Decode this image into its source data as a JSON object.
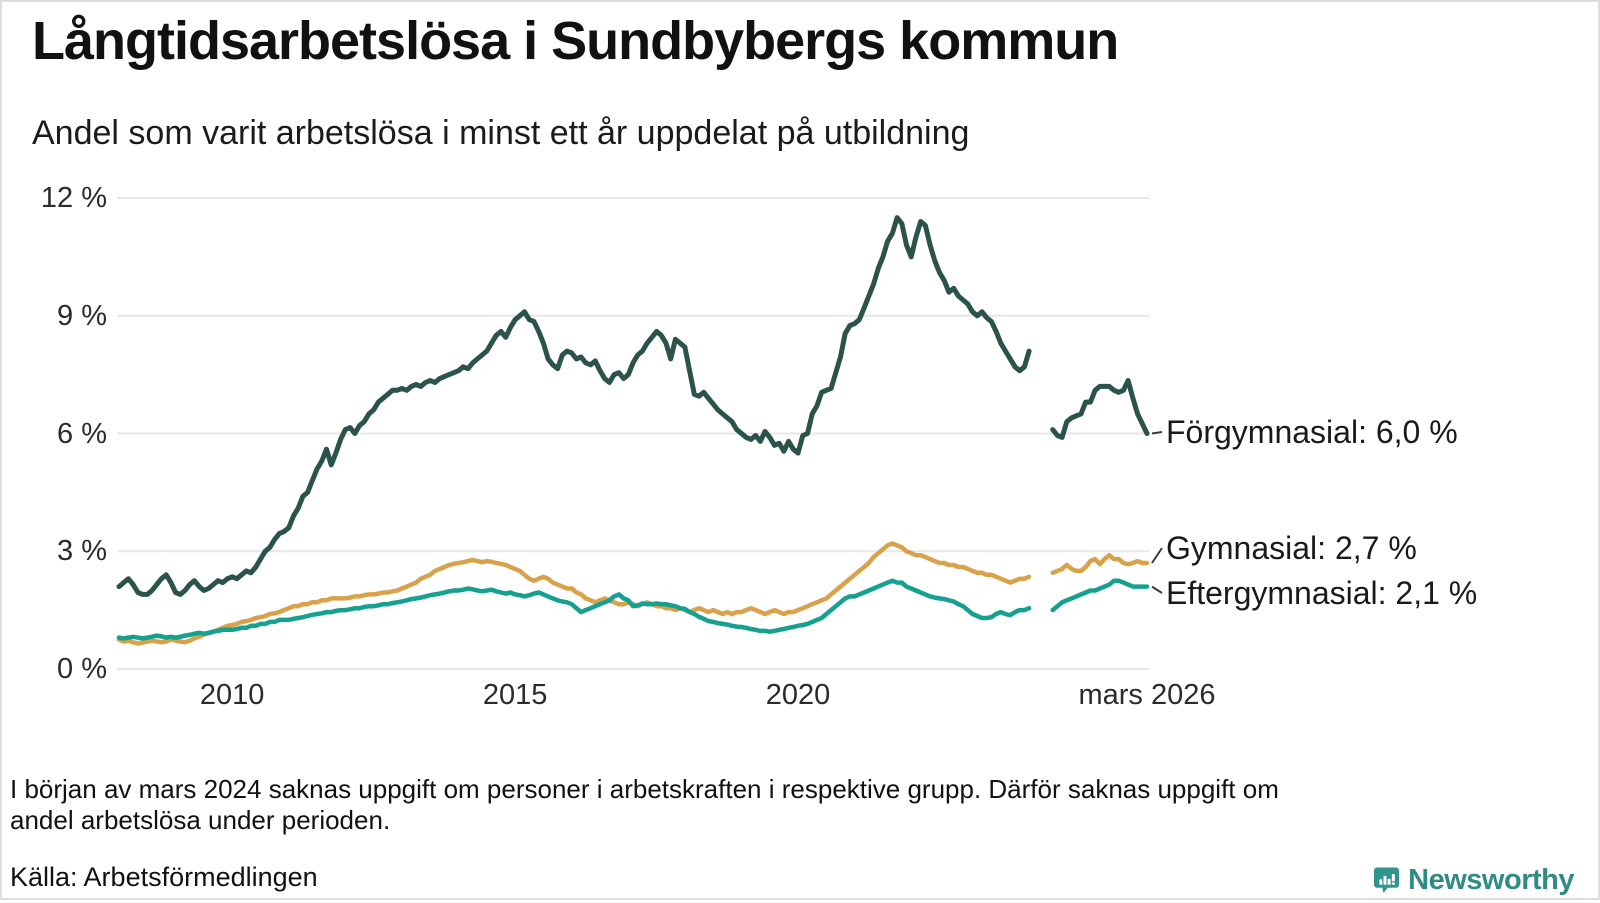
{
  "header": {
    "title": "Långtidsarbetslösa i Sundbybergs kommun",
    "subtitle": "Andel som varit arbetslösa i minst ett år uppdelat på utbildning"
  },
  "chart_data": {
    "type": "line",
    "unit": "%",
    "frequency": "monthly",
    "x_start": "2008-01",
    "x_end": "2026-03",
    "x_axis_t_range": [
      2008.0,
      2026.1667
    ],
    "ylim": [
      0,
      12
    ],
    "grid": "horizontal",
    "gridline_color": "#e7e7ea",
    "y_ticks": [
      {
        "label": "12 %",
        "value": 12
      },
      {
        "label": "9 %",
        "value": 9
      },
      {
        "label": "6 %",
        "value": 6
      },
      {
        "label": "3 %",
        "value": 3
      },
      {
        "label": "0 %",
        "value": 0
      }
    ],
    "x_ticks": [
      {
        "label": "2010",
        "t": 2010.0
      },
      {
        "label": "2015",
        "t": 2015.0
      },
      {
        "label": "2020",
        "t": 2020.0
      },
      {
        "label": "mars 2026",
        "t": 2026.1667
      }
    ],
    "series": [
      {
        "id": "gymnasial",
        "name": "Gymnasial",
        "color": "#d8a24b",
        "end_label": "Gymnasial: 2,7 %",
        "end_value": "2,7 %",
        "values": [
          0.75,
          0.7,
          0.72,
          0.68,
          0.65,
          0.67,
          0.7,
          0.72,
          0.7,
          0.68,
          0.7,
          0.75,
          0.72,
          0.7,
          0.68,
          0.72,
          0.78,
          0.82,
          0.88,
          0.92,
          0.95,
          1.0,
          1.05,
          1.1,
          1.12,
          1.15,
          1.2,
          1.22,
          1.25,
          1.3,
          1.32,
          1.35,
          1.4,
          1.42,
          1.45,
          1.5,
          1.55,
          1.6,
          1.6,
          1.65,
          1.65,
          1.7,
          1.7,
          1.75,
          1.75,
          1.8,
          1.8,
          1.8,
          1.8,
          1.82,
          1.85,
          1.85,
          1.88,
          1.9,
          1.9,
          1.92,
          1.95,
          1.95,
          1.98,
          2.0,
          2.05,
          2.1,
          2.15,
          2.2,
          2.3,
          2.35,
          2.4,
          2.5,
          2.55,
          2.6,
          2.65,
          2.68,
          2.7,
          2.72,
          2.75,
          2.78,
          2.75,
          2.72,
          2.75,
          2.73,
          2.7,
          2.68,
          2.65,
          2.6,
          2.55,
          2.5,
          2.4,
          2.3,
          2.25,
          2.3,
          2.35,
          2.3,
          2.2,
          2.15,
          2.1,
          2.05,
          2.05,
          1.95,
          1.9,
          1.8,
          1.75,
          1.7,
          1.75,
          1.8,
          1.75,
          1.7,
          1.65,
          1.65,
          1.7,
          1.65,
          1.6,
          1.65,
          1.7,
          1.65,
          1.6,
          1.6,
          1.55,
          1.55,
          1.5,
          1.55,
          1.5,
          1.45,
          1.5,
          1.55,
          1.5,
          1.45,
          1.5,
          1.45,
          1.4,
          1.45,
          1.4,
          1.45,
          1.45,
          1.5,
          1.55,
          1.5,
          1.45,
          1.4,
          1.45,
          1.5,
          1.45,
          1.4,
          1.45,
          1.45,
          1.5,
          1.55,
          1.6,
          1.65,
          1.7,
          1.75,
          1.8,
          1.9,
          2.0,
          2.1,
          2.2,
          2.3,
          2.4,
          2.5,
          2.6,
          2.7,
          2.85,
          2.95,
          3.05,
          3.15,
          3.2,
          3.15,
          3.1,
          3.0,
          2.95,
          2.9,
          2.9,
          2.85,
          2.8,
          2.75,
          2.7,
          2.7,
          2.65,
          2.65,
          2.6,
          2.6,
          2.55,
          2.5,
          2.45,
          2.45,
          2.4,
          2.4,
          2.35,
          2.3,
          2.25,
          2.2,
          2.25,
          2.3,
          2.3,
          2.35,
          null,
          null,
          null,
          null,
          2.45,
          2.5,
          2.55,
          2.65,
          2.55,
          2.5,
          2.5,
          2.6,
          2.75,
          2.8,
          2.67,
          2.8,
          2.9,
          2.8,
          2.8,
          2.7,
          2.67,
          2.7,
          2.75,
          2.7,
          2.7
        ]
      },
      {
        "id": "eftergymnasial",
        "name": "Eftergymnasial",
        "color": "#15a08f",
        "end_label": "Eftergymnasial: 2,1 %",
        "end_value": "2,1 %",
        "values": [
          0.8,
          0.78,
          0.8,
          0.82,
          0.8,
          0.78,
          0.8,
          0.82,
          0.85,
          0.83,
          0.8,
          0.82,
          0.8,
          0.82,
          0.85,
          0.87,
          0.9,
          0.92,
          0.9,
          0.92,
          0.95,
          0.97,
          1.0,
          1.0,
          1.0,
          1.02,
          1.05,
          1.05,
          1.1,
          1.1,
          1.15,
          1.15,
          1.2,
          1.2,
          1.25,
          1.25,
          1.25,
          1.28,
          1.3,
          1.32,
          1.35,
          1.38,
          1.4,
          1.42,
          1.45,
          1.45,
          1.48,
          1.5,
          1.5,
          1.52,
          1.55,
          1.55,
          1.58,
          1.6,
          1.6,
          1.62,
          1.65,
          1.65,
          1.68,
          1.7,
          1.72,
          1.75,
          1.78,
          1.8,
          1.82,
          1.85,
          1.88,
          1.9,
          1.92,
          1.95,
          1.98,
          2.0,
          2.0,
          2.02,
          2.05,
          2.03,
          2.0,
          1.98,
          2.0,
          2.02,
          1.98,
          1.95,
          1.92,
          1.95,
          1.9,
          1.88,
          1.85,
          1.88,
          1.92,
          1.95,
          1.9,
          1.85,
          1.8,
          1.75,
          1.72,
          1.7,
          1.65,
          1.55,
          1.45,
          1.5,
          1.55,
          1.6,
          1.65,
          1.7,
          1.75,
          1.85,
          1.9,
          1.8,
          1.75,
          1.6,
          1.62,
          1.67,
          1.65,
          1.65,
          1.67,
          1.65,
          1.65,
          1.62,
          1.6,
          1.55,
          1.53,
          1.45,
          1.4,
          1.33,
          1.28,
          1.22,
          1.2,
          1.17,
          1.15,
          1.13,
          1.1,
          1.08,
          1.07,
          1.05,
          1.02,
          1.0,
          0.97,
          0.97,
          0.95,
          0.97,
          1.0,
          1.02,
          1.05,
          1.07,
          1.1,
          1.12,
          1.15,
          1.2,
          1.25,
          1.3,
          1.4,
          1.5,
          1.6,
          1.7,
          1.8,
          1.85,
          1.85,
          1.9,
          1.95,
          2.0,
          2.05,
          2.1,
          2.15,
          2.2,
          2.25,
          2.2,
          2.2,
          2.1,
          2.05,
          2.0,
          1.95,
          1.9,
          1.85,
          1.82,
          1.8,
          1.78,
          1.75,
          1.72,
          1.65,
          1.6,
          1.5,
          1.4,
          1.35,
          1.3,
          1.3,
          1.32,
          1.4,
          1.45,
          1.4,
          1.37,
          1.45,
          1.5,
          1.5,
          1.55,
          null,
          null,
          null,
          null,
          1.5,
          1.6,
          1.7,
          1.75,
          1.8,
          1.85,
          1.9,
          1.95,
          2.0,
          2.0,
          2.05,
          2.1,
          2.15,
          2.25,
          2.25,
          2.2,
          2.15,
          2.1,
          2.1,
          2.1,
          2.1
        ]
      },
      {
        "id": "forgymnasial",
        "name": "Förgymnasial",
        "color": "#2b524b",
        "end_label": "Förgymnasial: 6,0 %",
        "end_value": "6,0 %",
        "values": [
          2.1,
          2.2,
          2.3,
          2.15,
          1.95,
          1.9,
          1.9,
          2.0,
          2.15,
          2.3,
          2.4,
          2.2,
          1.95,
          1.9,
          2.0,
          2.15,
          2.25,
          2.1,
          2.0,
          2.05,
          2.15,
          2.25,
          2.2,
          2.3,
          2.35,
          2.3,
          2.4,
          2.5,
          2.45,
          2.6,
          2.8,
          3.0,
          3.1,
          3.3,
          3.45,
          3.5,
          3.6,
          3.9,
          4.1,
          4.4,
          4.5,
          4.8,
          5.1,
          5.3,
          5.6,
          5.2,
          5.5,
          5.85,
          6.1,
          6.15,
          6.0,
          6.2,
          6.3,
          6.5,
          6.6,
          6.8,
          6.9,
          7.0,
          7.1,
          7.1,
          7.15,
          7.1,
          7.2,
          7.25,
          7.2,
          7.3,
          7.35,
          7.3,
          7.4,
          7.45,
          7.5,
          7.55,
          7.6,
          7.7,
          7.65,
          7.8,
          7.9,
          8.0,
          8.1,
          8.3,
          8.5,
          8.6,
          8.45,
          8.7,
          8.9,
          9.0,
          9.1,
          8.9,
          8.85,
          8.6,
          8.3,
          7.9,
          7.75,
          7.65,
          8.0,
          8.1,
          8.05,
          7.9,
          7.95,
          7.8,
          7.75,
          7.85,
          7.6,
          7.4,
          7.3,
          7.5,
          7.55,
          7.4,
          7.5,
          7.8,
          8.0,
          8.1,
          8.3,
          8.45,
          8.6,
          8.5,
          8.3,
          7.9,
          8.4,
          8.3,
          8.2,
          7.6,
          7.0,
          6.95,
          7.05,
          6.9,
          6.75,
          6.6,
          6.5,
          6.4,
          6.3,
          6.1,
          6.0,
          5.9,
          5.85,
          5.95,
          5.8,
          6.05,
          5.9,
          5.7,
          5.75,
          5.55,
          5.8,
          5.6,
          5.5,
          5.95,
          6.0,
          6.5,
          6.7,
          7.05,
          7.1,
          7.15,
          7.55,
          7.95,
          8.55,
          8.75,
          8.8,
          8.9,
          9.2,
          9.5,
          9.8,
          10.2,
          10.5,
          10.9,
          11.1,
          11.5,
          11.35,
          10.8,
          10.5,
          11.0,
          11.4,
          11.3,
          10.8,
          10.4,
          10.1,
          9.9,
          9.6,
          9.7,
          9.5,
          9.4,
          9.3,
          9.1,
          9.0,
          9.1,
          8.95,
          8.85,
          8.6,
          8.3,
          8.1,
          7.9,
          7.7,
          7.6,
          7.7,
          8.1,
          null,
          null,
          null,
          null,
          6.1,
          5.95,
          5.9,
          6.3,
          6.4,
          6.45,
          6.5,
          6.8,
          6.8,
          7.1,
          7.2,
          7.2,
          7.2,
          7.1,
          7.05,
          7.1,
          7.35,
          6.9,
          6.5,
          6.25,
          6.0
        ]
      }
    ]
  },
  "footer": {
    "note_line1": "I början av mars 2024 saknas uppgift om personer i arbetskraften i respektive grupp. Därför saknas uppgift om",
    "note_line2": "andel arbetslösa under perioden.",
    "source": "Källa: Arbetsförmedlingen",
    "logo_text": "Newsworthy",
    "logo_color": "#2e8b86",
    "logo_icon_color": "#2f948e"
  }
}
